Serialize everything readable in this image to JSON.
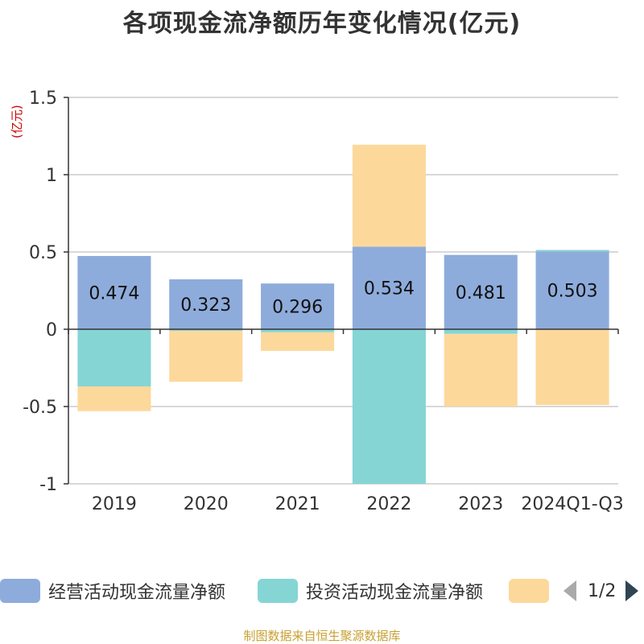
{
  "title": "各项现金流净额历年变化情况(亿元)",
  "unit_label": "(亿元)",
  "footer": "制图数据来自恒生聚源数据库",
  "legend": {
    "page_text": "1/2"
  },
  "colors": {
    "operating": "#8eacdb",
    "investing": "#85d5d5",
    "financing": "#fdd89b",
    "grid": "#cccccc",
    "axis": "#333333"
  },
  "chart_data": {
    "type": "bar",
    "stacked": true,
    "categories": [
      "2019",
      "2020",
      "2021",
      "2022",
      "2023",
      "2024Q1-Q3"
    ],
    "series": [
      {
        "name": "经营活动现金流量净额",
        "values": [
          0.474,
          0.323,
          0.296,
          0.534,
          0.481,
          0.503
        ],
        "show_labels": true
      },
      {
        "name": "投资活动现金流量净额",
        "values": [
          -0.37,
          -0.01,
          -0.02,
          -1.0,
          -0.03,
          0.01
        ],
        "show_labels": false
      },
      {
        "name": "",
        "values": [
          -0.16,
          -0.33,
          -0.12,
          0.66,
          -0.47,
          -0.49
        ],
        "show_labels": false
      }
    ],
    "ylim": [
      -1,
      1.5
    ],
    "yticks": [
      -1,
      -0.5,
      0,
      0.5,
      1,
      1.5
    ],
    "ytick_labels": [
      "-1",
      "-0.5",
      "0",
      "0.5",
      "1",
      "1.5"
    ],
    "grid": true,
    "legend_position": "bottom"
  }
}
